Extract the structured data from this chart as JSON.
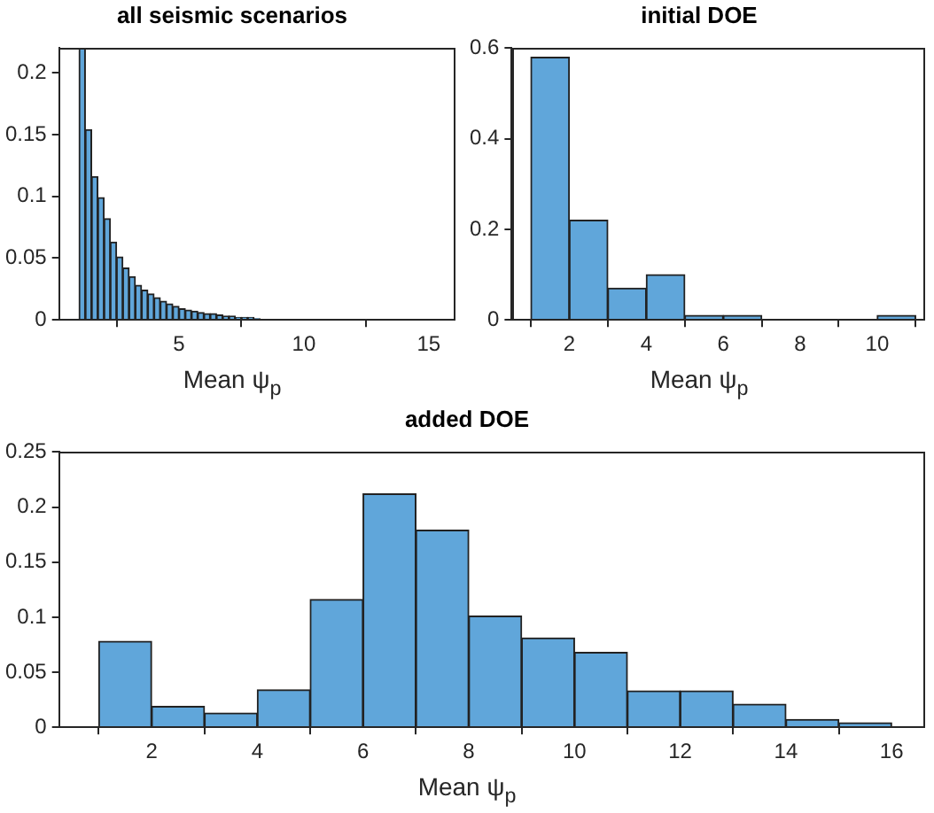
{
  "chart_data": [
    {
      "type": "histogram",
      "title": "all seismic scenarios",
      "xlabel": "Mean ψ$_{p}$",
      "color": "#60a6da",
      "bins": [
        1,
        1.25,
        1.5,
        1.75,
        2,
        2.25,
        2.5,
        2.75,
        3,
        3.25,
        3.5,
        3.75,
        4,
        4.25,
        4.5,
        4.75,
        5,
        5.25,
        5.5,
        5.75,
        6,
        6.25,
        6.5,
        6.75,
        7,
        7.25,
        7.5,
        7.75,
        8,
        8.25
      ],
      "values": [
        0.22,
        0.154,
        0.116,
        0.099,
        0.082,
        0.063,
        0.051,
        0.042,
        0.035,
        0.028,
        0.024,
        0.021,
        0.018,
        0.015,
        0.013,
        0.011,
        0.009,
        0.008,
        0.007,
        0.006,
        0.005,
        0.005,
        0.004,
        0.003,
        0.003,
        0.002,
        0.002,
        0.002,
        0.001
      ],
      "xlim": [
        0.2,
        16
      ],
      "ylim": [
        0,
        0.22
      ],
      "xticks": [
        5,
        10,
        15
      ],
      "yticks": [
        0,
        0.05,
        0.1,
        0.15,
        0.2
      ],
      "grid": false
    },
    {
      "type": "histogram",
      "title": "initial DOE",
      "xlabel": "Mean ψ$_{p}$",
      "color": "#60a6da",
      "bins": [
        1,
        2,
        3,
        4,
        5,
        6,
        7,
        8,
        9,
        10,
        11
      ],
      "values": [
        0.58,
        0.22,
        0.07,
        0.1,
        0.01,
        0.01,
        0,
        0,
        0,
        0.01
      ],
      "xlim": [
        0.5,
        11.2
      ],
      "ylim": [
        0,
        0.6
      ],
      "xticks": [
        2,
        4,
        6,
        8,
        10
      ],
      "yticks": [
        0,
        0.2,
        0.4,
        0.6
      ],
      "grid": false
    },
    {
      "type": "histogram",
      "title": "added DOE",
      "xlabel": "Mean ψ$_{p}$",
      "color": "#60a6da",
      "bins": [
        1,
        2,
        3,
        4,
        5,
        6,
        7,
        8,
        9,
        10,
        11,
        12,
        13,
        14,
        15,
        16
      ],
      "values": [
        0.078,
        0.019,
        0.013,
        0.034,
        0.116,
        0.212,
        0.179,
        0.101,
        0.081,
        0.068,
        0.033,
        0.033,
        0.021,
        0.007,
        0.004
      ],
      "xlim": [
        0.25,
        16.6
      ],
      "ylim": [
        0,
        0.25
      ],
      "xticks": [
        2,
        4,
        6,
        8,
        10,
        12,
        14,
        16
      ],
      "yticks": [
        0,
        0.05,
        0.1,
        0.15,
        0.2,
        0.25
      ],
      "grid": false
    }
  ]
}
